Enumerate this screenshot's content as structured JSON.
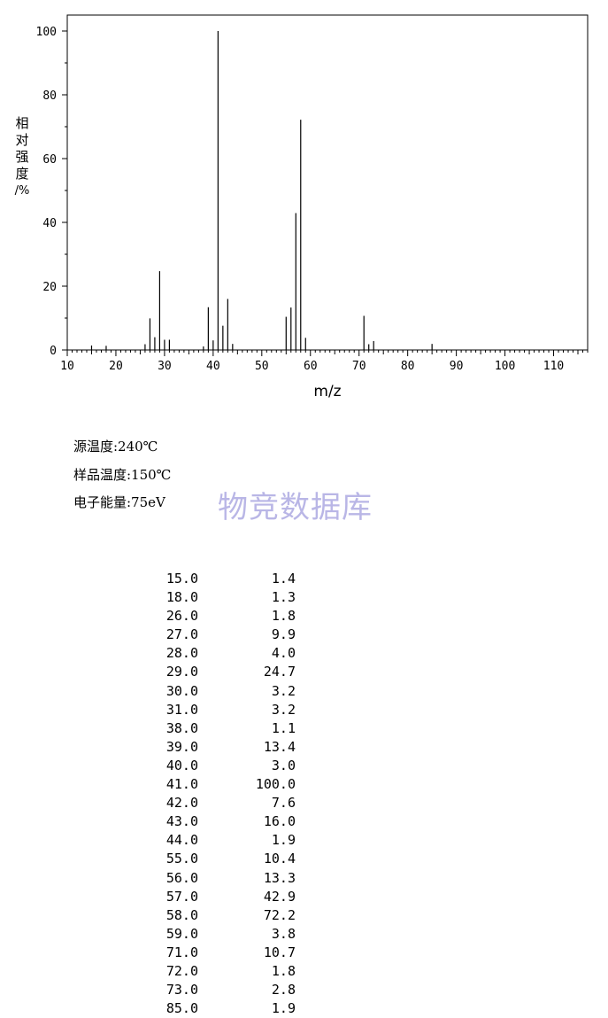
{
  "chart_data": {
    "type": "bar",
    "xlabel": "m/z",
    "ylabel_chars": [
      "相",
      "对",
      "强",
      "度",
      "/%"
    ],
    "xlim": [
      10,
      117
    ],
    "ylim": [
      0,
      100
    ],
    "xticks": [
      10,
      20,
      30,
      40,
      50,
      60,
      70,
      80,
      90,
      100,
      110
    ],
    "yticks": [
      0,
      20,
      40,
      60,
      80,
      100
    ],
    "x": [
      15,
      18,
      26,
      27,
      28,
      29,
      30,
      31,
      38,
      39,
      40,
      41,
      42,
      43,
      44,
      55,
      56,
      57,
      58,
      59,
      71,
      72,
      73,
      85
    ],
    "values": [
      1.4,
      1.3,
      1.8,
      9.9,
      4.0,
      24.7,
      3.2,
      3.2,
      1.1,
      13.4,
      3.0,
      100.0,
      7.6,
      16.0,
      1.9,
      10.4,
      13.3,
      42.9,
      72.2,
      3.8,
      10.7,
      1.8,
      2.8,
      1.9
    ]
  },
  "params": {
    "source_temp": "源温度:240℃",
    "sample_temp": "样品温度:150℃",
    "electron_energy": "电子能量:75eV"
  },
  "watermark": "物竞数据库",
  "peak_table": [
    [
      "15.0",
      "1.4"
    ],
    [
      "18.0",
      "1.3"
    ],
    [
      "26.0",
      "1.8"
    ],
    [
      "27.0",
      "9.9"
    ],
    [
      "28.0",
      "4.0"
    ],
    [
      "29.0",
      "24.7"
    ],
    [
      "30.0",
      "3.2"
    ],
    [
      "31.0",
      "3.2"
    ],
    [
      "38.0",
      "1.1"
    ],
    [
      "39.0",
      "13.4"
    ],
    [
      "40.0",
      "3.0"
    ],
    [
      "41.0",
      "100.0"
    ],
    [
      "42.0",
      "7.6"
    ],
    [
      "43.0",
      "16.0"
    ],
    [
      "44.0",
      "1.9"
    ],
    [
      "55.0",
      "10.4"
    ],
    [
      "56.0",
      "13.3"
    ],
    [
      "57.0",
      "42.9"
    ],
    [
      "58.0",
      "72.2"
    ],
    [
      "59.0",
      "3.8"
    ],
    [
      "71.0",
      "10.7"
    ],
    [
      "72.0",
      "1.8"
    ],
    [
      "73.0",
      "2.8"
    ],
    [
      "85.0",
      "1.9"
    ]
  ]
}
